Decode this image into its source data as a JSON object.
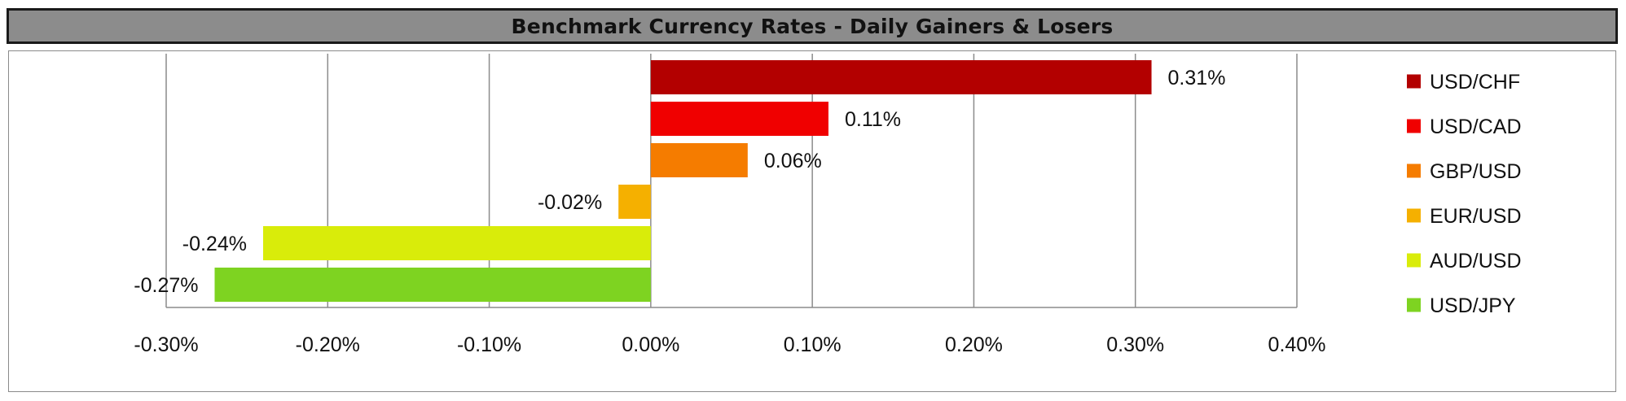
{
  "title": "Benchmark Currency Rates - Daily Gainers & Losers",
  "chart_data": {
    "type": "bar",
    "orientation": "horizontal",
    "title": "Benchmark Currency Rates - Daily Gainers & Losers",
    "xlabel": "",
    "ylabel": "",
    "xlim": [
      -0.3,
      0.4
    ],
    "x_tick_values": [
      -0.3,
      -0.2,
      -0.1,
      0.0,
      0.1,
      0.2,
      0.3,
      0.4
    ],
    "x_tick_labels": [
      "-0.30%",
      "-0.20%",
      "-0.10%",
      "0.00%",
      "0.10%",
      "0.20%",
      "0.30%",
      "0.40%"
    ],
    "grid": "vertical",
    "legend_position": "right",
    "series": [
      {
        "name": "USD/CHF",
        "value": 0.31,
        "label": "0.31%",
        "color": "#b30000"
      },
      {
        "name": "USD/CAD",
        "value": 0.11,
        "label": "0.11%",
        "color": "#f00000"
      },
      {
        "name": "GBP/USD",
        "value": 0.06,
        "label": "0.06%",
        "color": "#f57c00"
      },
      {
        "name": "EUR/USD",
        "value": -0.02,
        "label": "-0.02%",
        "color": "#f5b000"
      },
      {
        "name": "AUD/USD",
        "value": -0.24,
        "label": "-0.24%",
        "color": "#d9ec0a"
      },
      {
        "name": "USD/JPY",
        "value": -0.27,
        "label": "-0.27%",
        "color": "#7ed321"
      }
    ]
  }
}
